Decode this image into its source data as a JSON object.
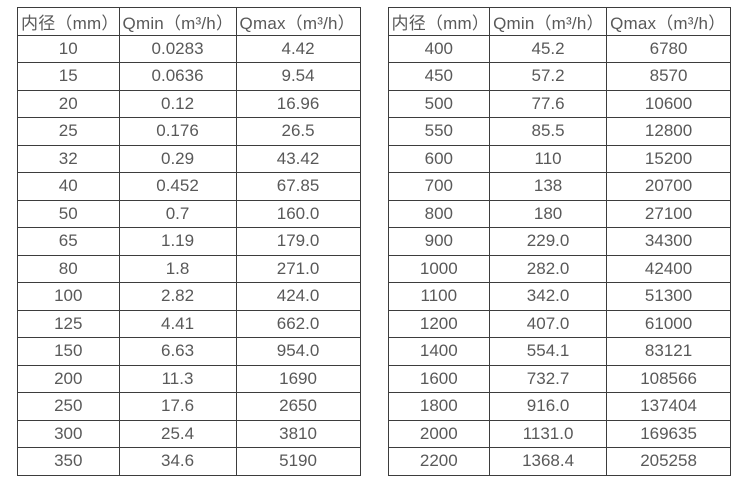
{
  "colors": {
    "background": "#ffffff",
    "border": "#3d3d3d",
    "text": "#595959"
  },
  "chart_data": [
    {
      "type": "table",
      "name": "small-diameter-flow-table",
      "columns": [
        "内径（mm）",
        "Qmin（m³/h）",
        "Qmax（m³/h）"
      ],
      "rows": [
        [
          "10",
          "0.0283",
          "4.42"
        ],
        [
          "15",
          "0.0636",
          "9.54"
        ],
        [
          "20",
          "0.12",
          "16.96"
        ],
        [
          "25",
          "0.176",
          "26.5"
        ],
        [
          "32",
          "0.29",
          "43.42"
        ],
        [
          "40",
          "0.452",
          "67.85"
        ],
        [
          "50",
          "0.7",
          "160.0"
        ],
        [
          "65",
          "1.19",
          "179.0"
        ],
        [
          "80",
          "1.8",
          "271.0"
        ],
        [
          "100",
          "2.82",
          "424.0"
        ],
        [
          "125",
          "4.41",
          "662.0"
        ],
        [
          "150",
          "6.63",
          "954.0"
        ],
        [
          "200",
          "11.3",
          "1690"
        ],
        [
          "250",
          "17.6",
          "2650"
        ],
        [
          "300",
          "25.4",
          "3810"
        ],
        [
          "350",
          "34.6",
          "5190"
        ]
      ]
    },
    {
      "type": "table",
      "name": "large-diameter-flow-table",
      "columns": [
        "内径（mm）",
        "Qmin（m³/h）",
        "Qmax（m³/h）"
      ],
      "rows": [
        [
          "400",
          "45.2",
          "6780"
        ],
        [
          "450",
          "57.2",
          "8570"
        ],
        [
          "500",
          "77.6",
          "10600"
        ],
        [
          "550",
          "85.5",
          "12800"
        ],
        [
          "600",
          "110",
          "15200"
        ],
        [
          "700",
          "138",
          "20700"
        ],
        [
          "800",
          "180",
          "27100"
        ],
        [
          "900",
          "229.0",
          "34300"
        ],
        [
          "1000",
          "282.0",
          "42400"
        ],
        [
          "1100",
          "342.0",
          "51300"
        ],
        [
          "1200",
          "407.0",
          "61000"
        ],
        [
          "1400",
          "554.1",
          "83121"
        ],
        [
          "1600",
          "732.7",
          "108566"
        ],
        [
          "1800",
          "916.0",
          "137404"
        ],
        [
          "2000",
          "1131.0",
          "169635"
        ],
        [
          "2200",
          "1368.4",
          "205258"
        ]
      ]
    }
  ]
}
